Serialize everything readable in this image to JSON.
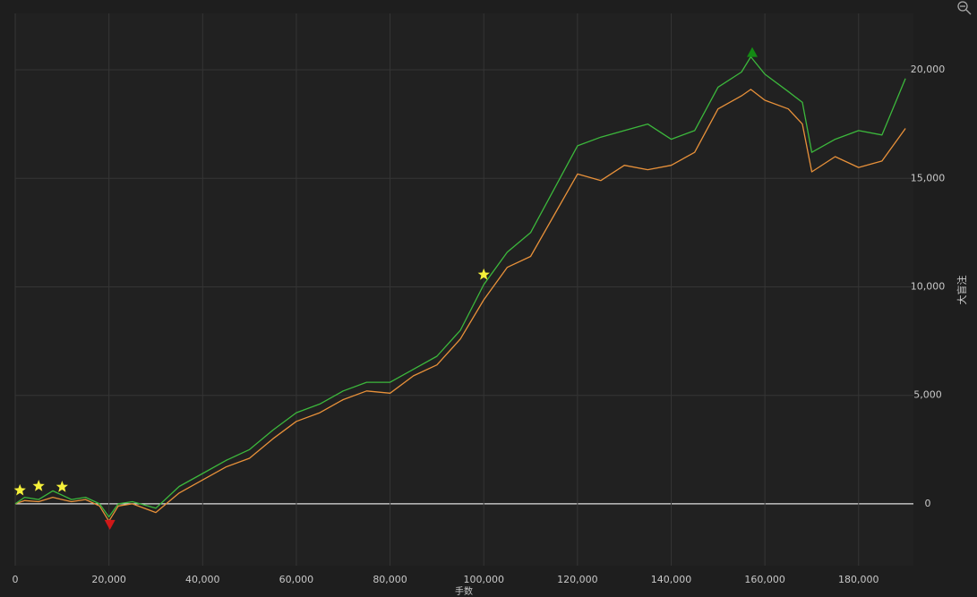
{
  "chart_data": {
    "type": "line",
    "x_label": "手数",
    "y_label": "大盲注",
    "x": [
      0,
      2000,
      5000,
      8000,
      10000,
      12000,
      15000,
      18000,
      20000,
      22000,
      25000,
      30000,
      35000,
      40000,
      45000,
      50000,
      55000,
      60000,
      65000,
      70000,
      75000,
      80000,
      85000,
      90000,
      95000,
      100000,
      105000,
      110000,
      115000,
      120000,
      125000,
      130000,
      135000,
      140000,
      145000,
      150000,
      155000,
      157000,
      160000,
      165000,
      168000,
      170000,
      175000,
      180000,
      185000,
      190000
    ],
    "series": [
      {
        "color": "#e8913a",
        "values": [
          0,
          150,
          100,
          300,
          200,
          100,
          200,
          -100,
          -800,
          -100,
          0,
          -400,
          500,
          1100,
          1700,
          2100,
          3000,
          3800,
          4200,
          4800,
          5200,
          5100,
          5900,
          6400,
          7600,
          9400,
          10900,
          11400,
          13300,
          15200,
          14900,
          15600,
          15400,
          15600,
          16200,
          18200,
          18800,
          19100,
          18600,
          18200,
          17500,
          15300,
          16000,
          15500,
          15800,
          17300
        ]
      },
      {
        "color": "#3cb83c",
        "values": [
          0,
          300,
          200,
          600,
          400,
          200,
          300,
          0,
          -600,
          0,
          100,
          -200,
          800,
          1400,
          2000,
          2500,
          3400,
          4200,
          4600,
          5200,
          5600,
          5600,
          6200,
          6800,
          8000,
          10100,
          11600,
          12500,
          14500,
          16500,
          16900,
          17200,
          17500,
          16800,
          17200,
          19200,
          19900,
          20600,
          19800,
          19000,
          18500,
          16200,
          16800,
          17200,
          17000,
          19600
        ]
      }
    ],
    "markers": [
      {
        "x": 1000,
        "y": 620,
        "shape": "star",
        "color": "#f5f03a"
      },
      {
        "x": 5000,
        "y": 820,
        "shape": "star",
        "color": "#f5f03a"
      },
      {
        "x": 10000,
        "y": 780,
        "shape": "star",
        "color": "#f5f03a"
      },
      {
        "x": 100000,
        "y": 10560,
        "shape": "star",
        "color": "#f5f03a"
      },
      {
        "x": 20200,
        "y": -950,
        "shape": "triangle-down",
        "color": "#d01818"
      },
      {
        "x": 157300,
        "y": 20800,
        "shape": "triangle-up",
        "color": "#138a13"
      }
    ],
    "xlim": [
      0,
      191700
    ],
    "ylim": [
      -2850,
      22600
    ],
    "xticks": [
      0,
      {
        "value": 20000,
        "label": "20,000"
      },
      {
        "value": 40000,
        "label": "40,000"
      },
      {
        "value": 60000,
        "label": "60,000"
      },
      {
        "value": 80000,
        "label": "80,000"
      },
      {
        "value": 100000,
        "label": "100,000"
      },
      {
        "value": 120000,
        "label": "120,000"
      },
      {
        "value": 140000,
        "label": "140,000"
      },
      {
        "value": 160000,
        "label": "160,000"
      },
      {
        "value": 180000,
        "label": "180,000"
      }
    ],
    "yticks": [
      0,
      {
        "value": 5000,
        "label": "5,000"
      },
      {
        "value": 10000,
        "label": "10,000"
      },
      {
        "value": 15000,
        "label": "15,000"
      },
      {
        "value": 20000,
        "label": "20,000"
      }
    ],
    "grid": true,
    "zero_line_color": "#e0e0e0"
  }
}
